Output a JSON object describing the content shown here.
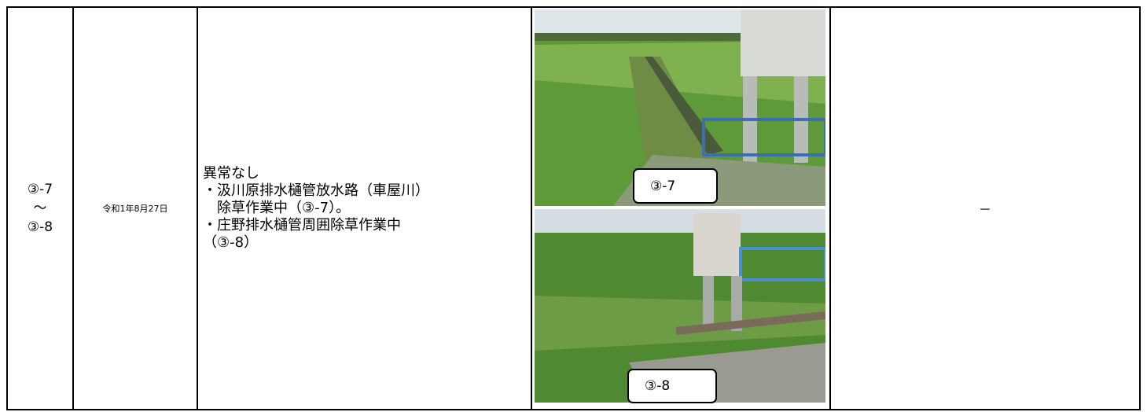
{
  "row": {
    "section": [
      "③-7",
      "～",
      "③-8"
    ],
    "date": "令和1年8月27日",
    "description": [
      "異常なし",
      "・汲川原排水樋管放水路（車屋川）",
      "　除草作業中（③-7）。",
      "・庄野排水樋管周囲除草作業中",
      "（③-8）"
    ],
    "photos": [
      {
        "caption": "③-7"
      },
      {
        "caption": "③-8"
      }
    ],
    "remarks": "－"
  }
}
